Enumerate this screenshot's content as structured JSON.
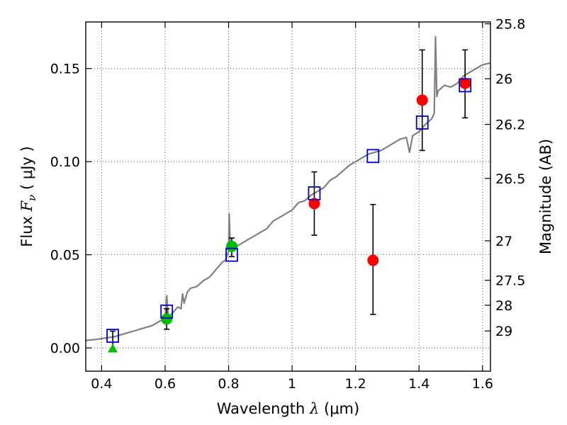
{
  "chart_data": {
    "type": "scatter",
    "xlabel_text": "Wavelength  ",
    "xlabel_symbol": "λ",
    "xlabel_unit": " (μm)",
    "ylabel_text": "Flux  ",
    "ylabel_symbol": "F",
    "ylabel_sub": "ν",
    "ylabel_unit": "  ( μJy )",
    "y2label": "Magnitude (AB)",
    "xlim": [
      0.35,
      1.625
    ],
    "ylim": [
      -0.0125,
      0.175
    ],
    "x_ticks": [
      0.4,
      0.6,
      0.8,
      1.0,
      1.2,
      1.4,
      1.6
    ],
    "x_tick_labels": [
      "0.4",
      "0.6",
      "0.8",
      "1",
      "1.2",
      "1.4",
      "1.6"
    ],
    "y_ticks": [
      0.0,
      0.05,
      0.1,
      0.15
    ],
    "y_tick_labels": [
      "0.00",
      "0.05",
      "0.10",
      "0.15"
    ],
    "y2_ticks": [
      {
        "flux": 0.174,
        "label": "25.8"
      },
      {
        "flux": 0.1445,
        "label": "26"
      },
      {
        "flux": 0.12,
        "label": "26.2"
      },
      {
        "flux": 0.091,
        "label": "26.5"
      },
      {
        "flux": 0.0575,
        "label": "27"
      },
      {
        "flux": 0.0363,
        "label": "27.5"
      },
      {
        "flux": 0.0229,
        "label": "28"
      },
      {
        "flux": 0.0091,
        "label": "29"
      }
    ],
    "grid": true,
    "colors": {
      "model_line": "#808080",
      "model_boxes": "#0000cc",
      "red_points": "#ff0000",
      "green_points": "#00bb00",
      "error_bars": "#000000",
      "grid": "#555555"
    },
    "series": [
      {
        "name": "model_spectrum",
        "kind": "line",
        "x": [
          0.35,
          0.38,
          0.4,
          0.42,
          0.44,
          0.46,
          0.48,
          0.5,
          0.52,
          0.54,
          0.56,
          0.58,
          0.6,
          0.605,
          0.61,
          0.62,
          0.63,
          0.64,
          0.65,
          0.655,
          0.66,
          0.67,
          0.68,
          0.7,
          0.72,
          0.74,
          0.76,
          0.78,
          0.79,
          0.8,
          0.802,
          0.805,
          0.81,
          0.82,
          0.84,
          0.86,
          0.88,
          0.9,
          0.92,
          0.94,
          0.96,
          0.98,
          1.0,
          1.02,
          1.04,
          1.06,
          1.08,
          1.1,
          1.12,
          1.14,
          1.16,
          1.18,
          1.2,
          1.22,
          1.24,
          1.26,
          1.28,
          1.3,
          1.32,
          1.34,
          1.36,
          1.37,
          1.38,
          1.4,
          1.42,
          1.44,
          1.448,
          1.452,
          1.456,
          1.46,
          1.48,
          1.5,
          1.52,
          1.54,
          1.56,
          1.58,
          1.6,
          1.625
        ],
        "y": [
          0.004,
          0.0045,
          0.005,
          0.0055,
          0.006,
          0.007,
          0.008,
          0.009,
          0.01,
          0.011,
          0.012,
          0.014,
          0.016,
          0.028,
          0.017,
          0.018,
          0.02,
          0.022,
          0.021,
          0.029,
          0.024,
          0.03,
          0.032,
          0.033,
          0.036,
          0.038,
          0.042,
          0.046,
          0.047,
          0.052,
          0.072,
          0.055,
          0.053,
          0.054,
          0.056,
          0.058,
          0.06,
          0.062,
          0.064,
          0.068,
          0.07,
          0.072,
          0.074,
          0.078,
          0.079,
          0.082,
          0.084,
          0.086,
          0.09,
          0.092,
          0.095,
          0.098,
          0.1,
          0.102,
          0.104,
          0.105,
          0.106,
          0.108,
          0.11,
          0.112,
          0.113,
          0.105,
          0.114,
          0.116,
          0.12,
          0.123,
          0.126,
          0.167,
          0.135,
          0.138,
          0.141,
          0.14,
          0.142,
          0.146,
          0.148,
          0.15,
          0.152,
          0.153
        ]
      },
      {
        "name": "model_synthetic_photometry",
        "kind": "open_square",
        "x": [
          0.435,
          0.605,
          0.81,
          1.07,
          1.255,
          1.41,
          1.545
        ],
        "y": [
          0.0065,
          0.0195,
          0.05,
          0.083,
          0.103,
          0.121,
          0.141
        ]
      },
      {
        "name": "observed_red",
        "kind": "filled_circle",
        "x": [
          1.07,
          1.255,
          1.41,
          1.545
        ],
        "y": [
          0.0775,
          0.047,
          0.133,
          0.142
        ],
        "yerr_low": [
          0.0605,
          0.018,
          0.106,
          0.1235
        ],
        "yerr_high": [
          0.0945,
          0.077,
          0.16,
          0.16
        ]
      },
      {
        "name": "observed_green",
        "kind": "filled_circle",
        "x": [
          0.605,
          0.81
        ],
        "y": [
          0.0155,
          0.0545
        ],
        "yerr_low": [
          0.01,
          0.049
        ],
        "yerr_high": [
          0.021,
          0.059
        ]
      },
      {
        "name": "upper_limit_green",
        "kind": "triangle",
        "x": [
          0.435
        ],
        "y": [
          -0.0005
        ],
        "yerr_low": [
          -0.0005
        ],
        "yerr_high": [
          0.009
        ]
      }
    ]
  }
}
